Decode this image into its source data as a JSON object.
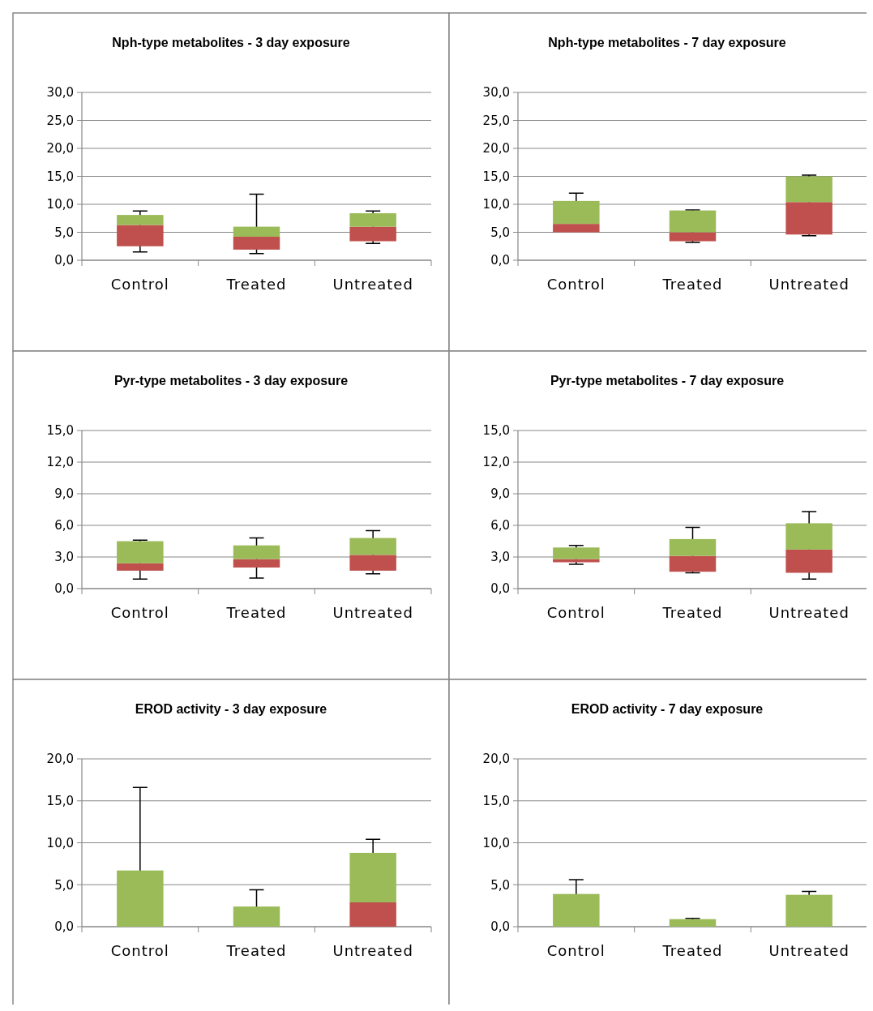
{
  "chart_data": [
    {
      "type": "box",
      "title": "Nph-type metabolites - 3 day exposure",
      "categories": [
        "Control",
        "Treated",
        "Untreated"
      ],
      "color": "#9bbb59",
      "colors": [
        "#c0504d",
        "#c0504d",
        "#c0504d"
      ],
      "ylim": [
        0,
        30
      ],
      "yticks": [
        {
          "value": 0,
          "label": "0,0"
        },
        {
          "value": 5,
          "label": "5,0"
        },
        {
          "value": 10,
          "label": "10,0"
        },
        {
          "value": 15,
          "label": "15,0"
        },
        {
          "value": 20,
          "label": "20,0"
        },
        {
          "value": 25,
          "label": "25,0"
        },
        {
          "value": 30,
          "label": "30,0"
        }
      ],
      "grid": "y",
      "boxes": [
        {
          "low": 1.5,
          "q1": 2.5,
          "median": 6.3,
          "q3": 8.1,
          "high": 8.8
        },
        {
          "low": 1.2,
          "q1": 1.9,
          "median": 4.2,
          "q3": 6.0,
          "high": 11.8
        },
        {
          "low": 3.0,
          "q1": 3.4,
          "median": 6.0,
          "q3": 8.4,
          "high": 8.8
        }
      ]
    },
    {
      "type": "box",
      "title": "Nph-type metabolites - 7 day exposure",
      "categories": [
        "Control",
        "Treated",
        "Untreated"
      ],
      "color": "#9bbb59",
      "colors": [
        "#c0504d",
        "#c0504d",
        "#c0504d"
      ],
      "ylim": [
        0,
        30
      ],
      "yticks": [
        {
          "value": 0,
          "label": "0,0"
        },
        {
          "value": 5,
          "label": "5,0"
        },
        {
          "value": 10,
          "label": "10,0"
        },
        {
          "value": 15,
          "label": "15,0"
        },
        {
          "value": 20,
          "label": "20,0"
        },
        {
          "value": 25,
          "label": "25,0"
        },
        {
          "value": 30,
          "label": "30,0"
        }
      ],
      "grid": "y",
      "boxes": [
        {
          "low": 5.0,
          "q1": 5.0,
          "median": 6.5,
          "q3": 10.6,
          "high": 12.0
        },
        {
          "low": 3.2,
          "q1": 3.4,
          "median": 5.0,
          "q3": 8.9,
          "high": 9.0
        },
        {
          "low": 4.4,
          "q1": 4.6,
          "median": 10.4,
          "q3": 15.0,
          "high": 15.2
        }
      ]
    },
    {
      "type": "box",
      "title": "Pyr-type metabolites - 3 day exposure",
      "categories": [
        "Control",
        "Treated",
        "Untreated"
      ],
      "color": "#9bbb59",
      "colors": [
        "#c0504d",
        "#c0504d",
        "#c0504d"
      ],
      "ylim": [
        0,
        15
      ],
      "yticks": [
        {
          "value": 0,
          "label": "0,0"
        },
        {
          "value": 3,
          "label": "3,0"
        },
        {
          "value": 6,
          "label": "6,0"
        },
        {
          "value": 9,
          "label": "9,0"
        },
        {
          "value": 12,
          "label": "12,0"
        },
        {
          "value": 15,
          "label": "15,0"
        }
      ],
      "grid": "y",
      "boxes": [
        {
          "low": 0.9,
          "q1": 1.7,
          "median": 2.4,
          "q3": 4.5,
          "high": 4.6
        },
        {
          "low": 1.0,
          "q1": 2.0,
          "median": 2.8,
          "q3": 4.1,
          "high": 4.8
        },
        {
          "low": 1.4,
          "q1": 1.7,
          "median": 3.2,
          "q3": 4.8,
          "high": 5.5
        }
      ]
    },
    {
      "type": "box",
      "title": "Pyr-type metabolites - 7 day exposure",
      "categories": [
        "Control",
        "Treated",
        "Untreated"
      ],
      "color": "#9bbb59",
      "colors": [
        "#c0504d",
        "#c0504d",
        "#c0504d"
      ],
      "ylim": [
        0,
        15
      ],
      "yticks": [
        {
          "value": 0,
          "label": "0,0"
        },
        {
          "value": 3,
          "label": "3,0"
        },
        {
          "value": 6,
          "label": "6,0"
        },
        {
          "value": 9,
          "label": "9,0"
        },
        {
          "value": 12,
          "label": "12,0"
        },
        {
          "value": 15,
          "label": "15,0"
        }
      ],
      "grid": "y",
      "boxes": [
        {
          "low": 2.3,
          "q1": 2.5,
          "median": 2.8,
          "q3": 3.9,
          "high": 4.1
        },
        {
          "low": 1.5,
          "q1": 1.6,
          "median": 3.1,
          "q3": 4.7,
          "high": 5.8
        },
        {
          "low": 0.9,
          "q1": 1.5,
          "median": 3.7,
          "q3": 6.2,
          "high": 7.3
        }
      ]
    },
    {
      "type": "box",
      "title": "EROD activity - 3 day exposure",
      "categories": [
        "Control",
        "Treated",
        "Untreated"
      ],
      "color": "#9bbb59",
      "colors": [
        null,
        null,
        "#c0504d"
      ],
      "ylim": [
        0,
        20
      ],
      "yticks": [
        {
          "value": 0,
          "label": "0,0"
        },
        {
          "value": 5,
          "label": "5,0"
        },
        {
          "value": 10,
          "label": "10,0"
        },
        {
          "value": 15,
          "label": "15,0"
        },
        {
          "value": 20,
          "label": "20,0"
        }
      ],
      "grid": "y",
      "boxes": [
        {
          "low": 0,
          "q1": 0,
          "median": 0,
          "q3": 6.7,
          "high": 16.6
        },
        {
          "low": 0,
          "q1": 0,
          "median": 0,
          "q3": 2.4,
          "high": 4.4
        },
        {
          "low": 0,
          "q1": 0,
          "median": 2.9,
          "q3": 8.8,
          "high": 10.4
        }
      ]
    },
    {
      "type": "box",
      "title": "EROD activity - 7 day exposure",
      "categories": [
        "Control",
        "Treated",
        "Untreated"
      ],
      "color": "#9bbb59",
      "ylim": [
        0,
        20
      ],
      "yticks": [
        {
          "value": 0,
          "label": "0,0"
        },
        {
          "value": 5,
          "label": "5,0"
        },
        {
          "value": 10,
          "label": "10,0"
        },
        {
          "value": 15,
          "label": "15,0"
        },
        {
          "value": 20,
          "label": "20,0"
        }
      ],
      "grid": "y",
      "boxes": [
        {
          "low": 0,
          "q1": 0,
          "median": 0,
          "q3": 3.9,
          "high": 5.6
        },
        {
          "low": 0,
          "q1": 0,
          "median": 0,
          "q3": 0.9,
          "high": 1.0
        },
        {
          "low": 0,
          "q1": 0,
          "median": 0,
          "q3": 3.8,
          "high": 4.2
        }
      ]
    }
  ]
}
